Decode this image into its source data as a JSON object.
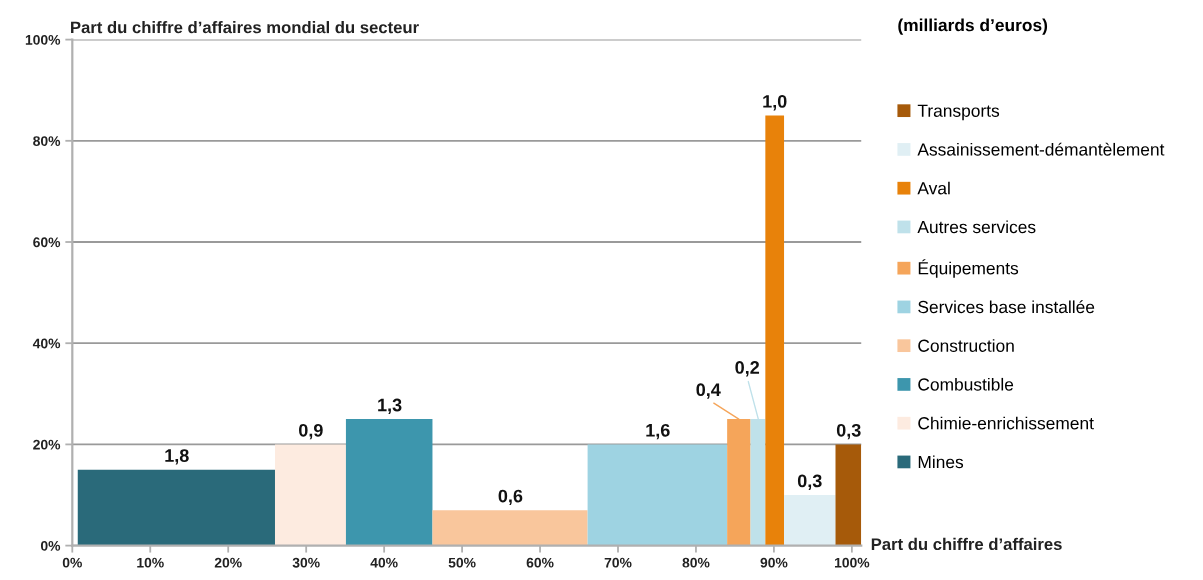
{
  "chart_data": {
    "type": "area",
    "ylabel": "Part du chiffre d’affaires mondial du secteur",
    "xlabel": "Part du chiffre d’affaires",
    "legend_title": "(milliards d’euros)",
    "legend": "right",
    "grid": "y",
    "xlim": [
      0,
      101.2
    ],
    "xticks": [
      {
        "value": 0,
        "label": "0%"
      },
      {
        "value": 10,
        "label": "10%"
      },
      {
        "value": 20,
        "label": "20%"
      },
      {
        "value": 30,
        "label": "30%"
      },
      {
        "value": 40,
        "label": "40%"
      },
      {
        "value": 50,
        "label": "50%"
      },
      {
        "value": 60,
        "label": "60%"
      },
      {
        "value": 70,
        "label": "70%"
      },
      {
        "value": 80,
        "label": "80%"
      },
      {
        "value": 90,
        "label": "90%"
      },
      {
        "value": 100,
        "label": "100%"
      }
    ],
    "ylim": [
      0,
      100
    ],
    "yticks": [
      {
        "value": 0,
        "label": "0%"
      },
      {
        "value": 20,
        "label": "20%"
      },
      {
        "value": 40,
        "label": "40%"
      },
      {
        "value": 60,
        "label": "60%"
      },
      {
        "value": 80,
        "label": "80%"
      },
      {
        "value": 100,
        "label": "100%"
      }
    ],
    "series": [
      {
        "name": "Mines",
        "color": "#2a6a7a",
        "x": [
          0.7,
          26.0
        ],
        "values": [
          15,
          15
        ]
      },
      {
        "name": "Chimie-enrichissement",
        "color": "#fdebe0",
        "x": [
          26.0,
          35.1
        ],
        "values": [
          20,
          20
        ]
      },
      {
        "name": "Combustible",
        "color": "#3d96ad",
        "x": [
          35.1,
          46.2
        ],
        "values": [
          25,
          25
        ]
      },
      {
        "name": "Construction",
        "color": "#f9c69c",
        "x": [
          46.2,
          66.1
        ],
        "values": [
          7,
          7
        ]
      },
      {
        "name": "Services base installée",
        "color": "#9ed3e2",
        "x": [
          66.1,
          84.0
        ],
        "values": [
          20,
          20
        ]
      },
      {
        "name": "Équipements",
        "color": "#f5a55a",
        "x": [
          84.0,
          87.0
        ],
        "values": [
          25,
          25
        ]
      },
      {
        "name": "Autres services",
        "color": "#bfe1ea",
        "x": [
          87.0,
          88.9
        ],
        "values": [
          25,
          25
        ]
      },
      {
        "name": "Aval",
        "color": "#e8820a",
        "x": [
          88.9,
          91.3
        ],
        "values": [
          85,
          85
        ]
      },
      {
        "name": "Assainissement-démantèlement",
        "color": "#e0eff4",
        "x": [
          91.3,
          97.9
        ],
        "values": [
          10,
          10
        ]
      },
      {
        "name": "Transports",
        "color": "#a65a0a",
        "x": [
          97.9,
          101.2
        ],
        "values": [
          20,
          20
        ]
      }
    ],
    "annotations": [
      {
        "text": "1,8",
        "x": 13.4,
        "y": 15
      },
      {
        "text": "0,9",
        "x": 30.6,
        "y": 20
      },
      {
        "text": "1,3",
        "x": 40.7,
        "y": 25
      },
      {
        "text": "0,6",
        "x": 56.2,
        "y": 7
      },
      {
        "text": "1,6",
        "x": 75.1,
        "y": 20
      },
      {
        "text": "0,4",
        "x": 85.5,
        "y": 25
      },
      {
        "text": "0,2",
        "x": 88.0,
        "y": 25
      },
      {
        "text": "1,0",
        "x": 90.1,
        "y": 85
      },
      {
        "text": "0,3",
        "x": 94.6,
        "y": 10
      },
      {
        "text": "0,3",
        "x": 99.6,
        "y": 20
      }
    ]
  }
}
